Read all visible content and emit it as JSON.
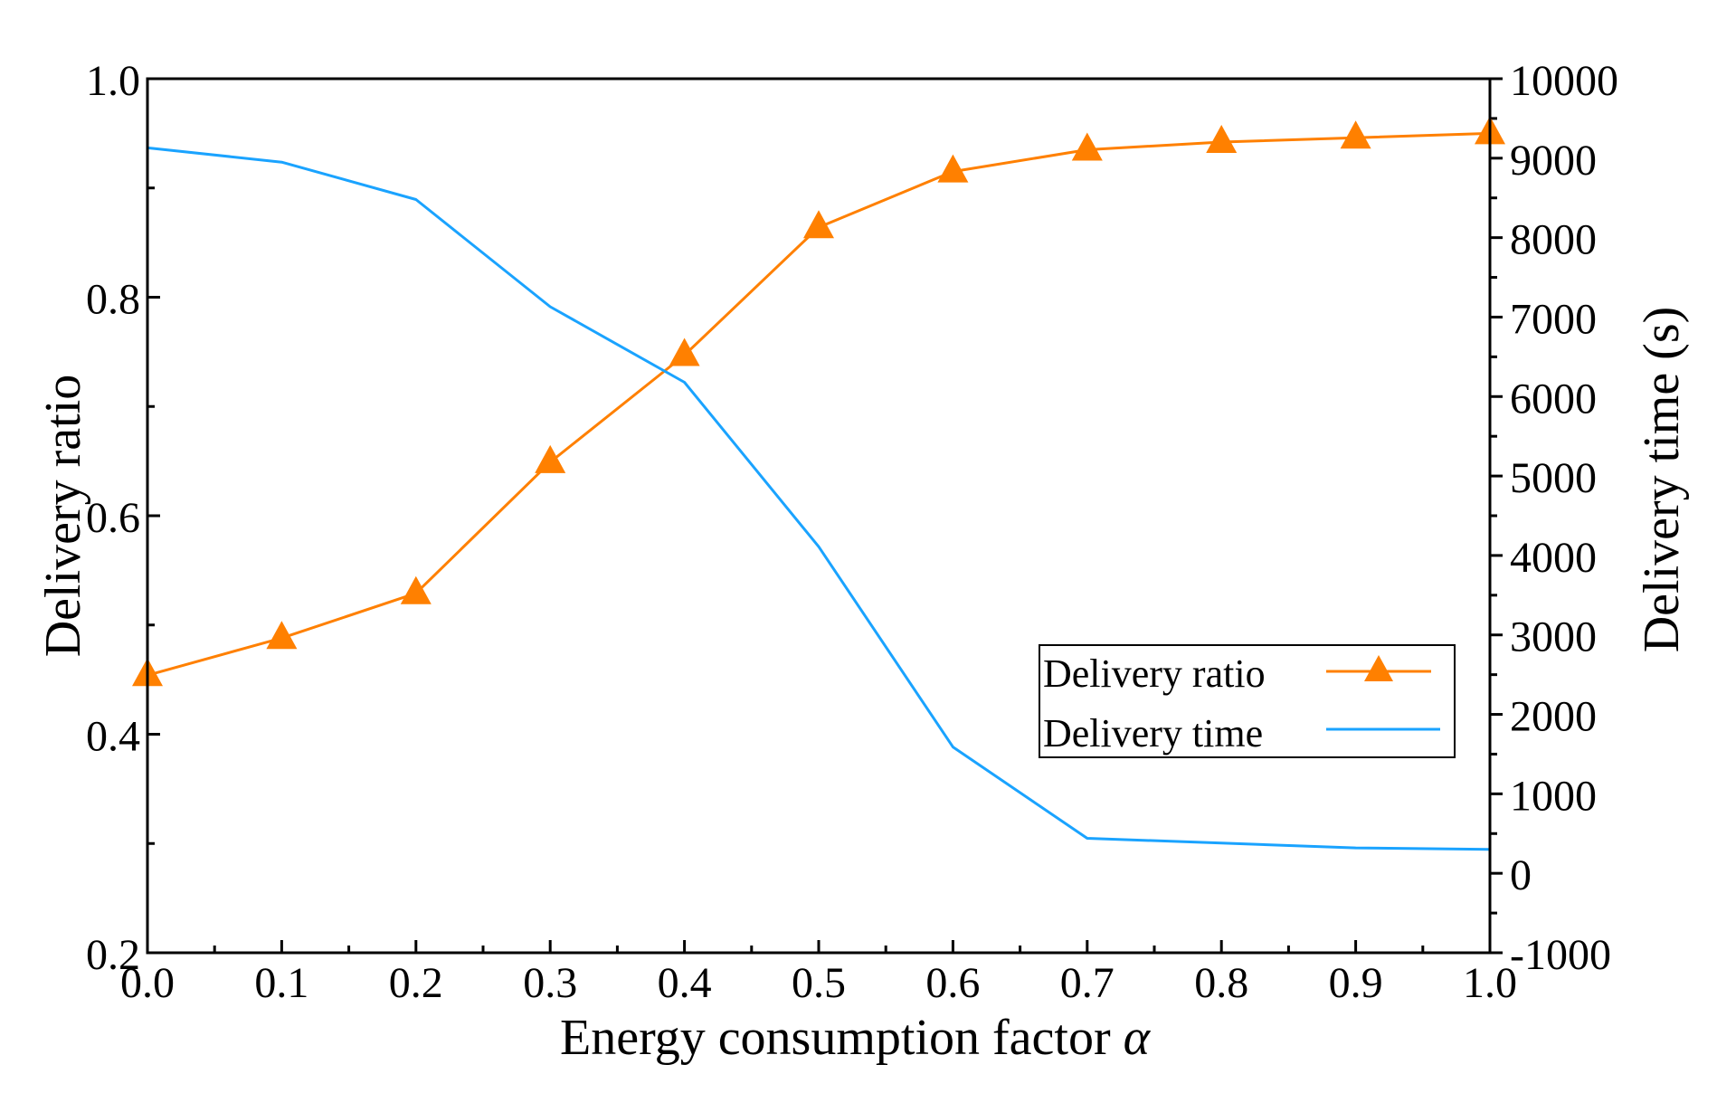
{
  "chart_data": {
    "type": "line",
    "title": "",
    "xlabel": "Energy consumption factor",
    "xlabel_symbol": "α",
    "ylabel_left": "Delivery ratio",
    "ylabel_right": "Delivery time (s)",
    "x": [
      0.0,
      0.1,
      0.2,
      0.3,
      0.4,
      0.5,
      0.6,
      0.7,
      0.8,
      0.9,
      1.0
    ],
    "xlim": [
      0.0,
      1.0
    ],
    "xticks": [
      "0.0",
      "0.1",
      "0.2",
      "0.3",
      "0.4",
      "0.5",
      "0.6",
      "0.7",
      "0.8",
      "0.9",
      "1.0"
    ],
    "ylim_left": [
      0.2,
      1.0
    ],
    "yticks_left": [
      "0.2",
      "0.4",
      "0.6",
      "0.8",
      "1.0"
    ],
    "ylim_right": [
      -1000,
      10000
    ],
    "yticks_right": [
      "-1000",
      "0",
      "1000",
      "2000",
      "3000",
      "4000",
      "5000",
      "6000",
      "7000",
      "8000",
      "9000",
      "10000"
    ],
    "grid": false,
    "legend_position": "lower-right",
    "series": [
      {
        "name": "Delivery ratio",
        "axis": "left",
        "marker": "triangle",
        "color": "#ff8000",
        "values": [
          0.454,
          0.488,
          0.529,
          0.649,
          0.747,
          0.864,
          0.915,
          0.935,
          0.942,
          0.946,
          0.95
        ]
      },
      {
        "name": "Delivery time",
        "axis": "right",
        "marker": "none",
        "color": "#1aa3ff",
        "values": [
          9130,
          8950,
          8480,
          7130,
          6180,
          4110,
          1590,
          440,
          380,
          320,
          300
        ]
      }
    ]
  }
}
